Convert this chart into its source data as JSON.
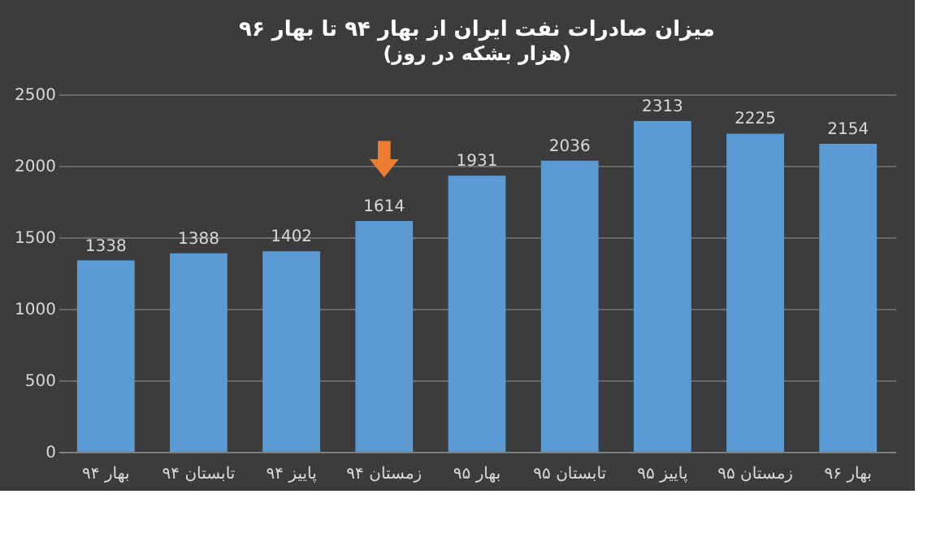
{
  "chart_data": {
    "type": "bar",
    "title": "میزان صادرات نفت ایران از بهار ۹۴ تا بهار ۹۶",
    "subtitle": "(هزار بشکه در روز)",
    "categories": [
      "بهار ۹۴",
      "تابستان ۹۴",
      "پاییز ۹۴",
      "زمستان ۹۴",
      "بهار ۹۵",
      "تابستان ۹۵",
      "پاییز ۹۵",
      "زمستان ۹۵",
      "بهار ۹۶"
    ],
    "values": [
      1338,
      1388,
      1402,
      1614,
      1931,
      2036,
      2313,
      2225,
      2154
    ],
    "color": "#5b9bd5",
    "ylim": [
      0,
      2500
    ],
    "yticks": [
      0,
      500,
      1000,
      1500,
      2000,
      2500
    ],
    "grid": "y",
    "data_labels": true
  }
}
